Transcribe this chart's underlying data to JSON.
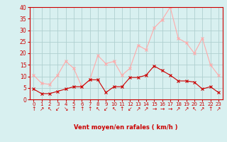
{
  "hours": [
    0,
    1,
    2,
    3,
    4,
    5,
    6,
    7,
    8,
    9,
    10,
    11,
    12,
    13,
    14,
    15,
    16,
    17,
    18,
    19,
    20,
    21,
    22,
    23
  ],
  "wind_avg": [
    4.5,
    2.5,
    2.5,
    3.5,
    4.5,
    5.5,
    5.5,
    8.5,
    8.5,
    3.0,
    5.5,
    5.5,
    9.5,
    9.5,
    10.5,
    14.5,
    12.5,
    10.5,
    8.0,
    8.0,
    7.5,
    4.5,
    5.5,
    3.0
  ],
  "wind_gust": [
    10.5,
    7.0,
    6.5,
    10.5,
    16.5,
    13.5,
    5.5,
    8.5,
    19.0,
    15.5,
    16.5,
    10.5,
    13.5,
    23.5,
    21.5,
    31.0,
    34.5,
    40.0,
    26.5,
    24.5,
    20.0,
    26.5,
    15.0,
    10.5
  ],
  "wind_dirs": [
    "↑",
    "↗",
    "↖",
    "↙",
    "↘",
    "↑",
    "↑",
    "↑",
    "↖",
    "↙",
    "↖",
    "↑",
    "↙",
    "↗",
    "↗",
    "→",
    "→",
    "→",
    "↗",
    "↗",
    "↖",
    "↗",
    "↑",
    "↗"
  ],
  "avg_line_color": "#cc0000",
  "gust_line_color": "#ffaaaa",
  "bg_color": "#d8f0f0",
  "grid_color": "#b0d0d0",
  "axis_color": "#cc0000",
  "tick_color": "#cc0000",
  "xlabel": "Vent moyen/en rafales ( km/h )",
  "ylim": [
    0,
    40
  ],
  "yticks": [
    0,
    5,
    10,
    15,
    20,
    25,
    30,
    35,
    40
  ]
}
